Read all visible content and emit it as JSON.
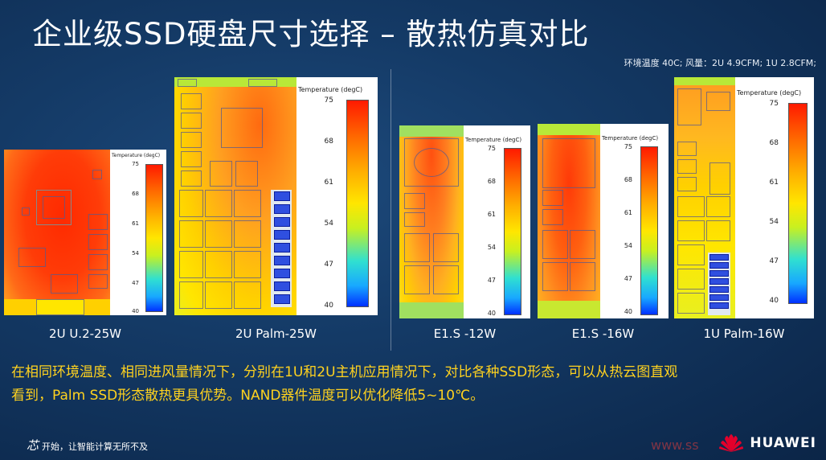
{
  "slide": {
    "title": "企业级SSD硬盘尺寸选择 – 散热仿真对比",
    "conditions": "环境温度 40C; 风量：2U 4.9CFM; 1U 2.8CFM;",
    "summary_line1": "在相同环境温度、相同进风量情况下，分别在1U和2U主机应用情况下，对比各种SSD形态，可以从热云图直观",
    "summary_line2": "看到，Palm SSD形态散热更具优势。NAND器件温度可以优化降低5~10℃。",
    "footer_slogan": "开始，让智能计算无所不及",
    "slogan_mark": "芯",
    "brand": "HUAWEI",
    "watermark": "www.ss"
  },
  "legend": {
    "title": "Temperature (degC)",
    "ticks": [
      "75",
      "68",
      "61",
      "54",
      "47",
      "40"
    ]
  },
  "simulations": [
    {
      "caption": "2U U.2-25W",
      "color": "#ff3a10"
    },
    {
      "caption": "2U Palm-25W",
      "color": "#ffc000"
    },
    {
      "caption": "E1.S -12W",
      "color": "#ffa020"
    },
    {
      "caption": "E1.S -16W",
      "color": "#ff8010"
    },
    {
      "caption": "1U Palm-16W",
      "color": "#ffd000"
    }
  ],
  "colors": {
    "background": "#143a66",
    "summary_text": "#ffd21f",
    "brand_red": "#e4002b"
  }
}
